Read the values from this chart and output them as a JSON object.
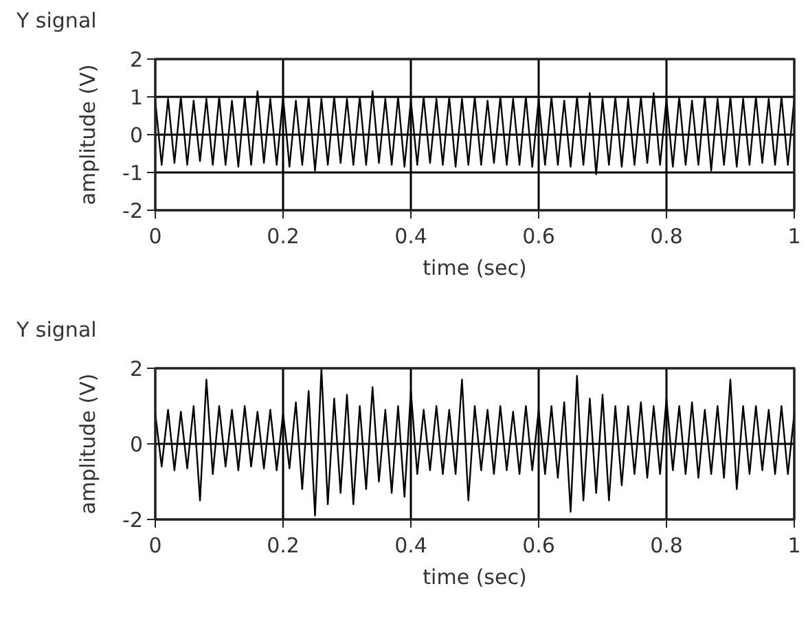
{
  "chart_data": [
    {
      "type": "line",
      "title": "Y signal",
      "xlabel": "time (sec)",
      "ylabel": "amplitude (V)",
      "xlim": [
        0,
        1
      ],
      "ylim": [
        -2,
        2
      ],
      "xticks": [
        0,
        0.2,
        0.4,
        0.6,
        0.8,
        1
      ],
      "yticks": [
        -2,
        -1,
        0,
        1,
        2
      ],
      "grid": true,
      "x": [
        0,
        0.01,
        0.02,
        0.03,
        0.04,
        0.05,
        0.06,
        0.07,
        0.08,
        0.09,
        0.1,
        0.11,
        0.12,
        0.13,
        0.14,
        0.15,
        0.16,
        0.17,
        0.18,
        0.19,
        0.2,
        0.21,
        0.22,
        0.23,
        0.24,
        0.25,
        0.26,
        0.27,
        0.28,
        0.29,
        0.3,
        0.31,
        0.32,
        0.33,
        0.34,
        0.35,
        0.36,
        0.37,
        0.38,
        0.39,
        0.4,
        0.41,
        0.42,
        0.43,
        0.44,
        0.45,
        0.46,
        0.47,
        0.48,
        0.49,
        0.5,
        0.51,
        0.52,
        0.53,
        0.54,
        0.55,
        0.56,
        0.57,
        0.58,
        0.59,
        0.6,
        0.61,
        0.62,
        0.63,
        0.64,
        0.65,
        0.66,
        0.67,
        0.68,
        0.69,
        0.7,
        0.71,
        0.72,
        0.73,
        0.74,
        0.75,
        0.76,
        0.77,
        0.78,
        0.79,
        0.8,
        0.81,
        0.82,
        0.83,
        0.84,
        0.85,
        0.86,
        0.87,
        0.88,
        0.89,
        0.9,
        0.91,
        0.92,
        0.93,
        0.94,
        0.95,
        0.96,
        0.97,
        0.98,
        0.99,
        1
      ],
      "series": [
        {
          "color": "#000000",
          "values": [
            0.9,
            -0.8,
            0.95,
            -0.75,
            1.0,
            -0.8,
            0.9,
            -0.7,
            0.95,
            -0.8,
            1.0,
            -0.8,
            0.9,
            -0.85,
            1.0,
            -0.8,
            1.15,
            -0.75,
            0.95,
            -0.8,
            1.0,
            -0.85,
            0.9,
            -0.8,
            1.0,
            -0.95,
            0.95,
            -0.8,
            1.0,
            -0.75,
            0.95,
            -0.8,
            1.0,
            -0.8,
            1.15,
            -0.75,
            0.95,
            -0.8,
            1.0,
            -0.85,
            0.9,
            -0.8,
            1.0,
            -0.75,
            0.95,
            -0.8,
            1.0,
            -0.85,
            0.95,
            -0.8,
            1.0,
            -0.8,
            0.9,
            -0.75,
            1.0,
            -0.8,
            0.95,
            -0.8,
            1.0,
            -0.85,
            0.95,
            -0.8,
            1.0,
            -0.8,
            0.9,
            -0.85,
            1.0,
            -0.8,
            1.1,
            -1.05,
            0.95,
            -0.8,
            1.0,
            -0.85,
            0.95,
            -0.8,
            1.0,
            -0.75,
            1.1,
            -0.8,
            0.95,
            -0.85,
            1.0,
            -0.8,
            0.9,
            -0.8,
            1.0,
            -0.95,
            0.95,
            -0.8,
            1.0,
            -0.85,
            0.95,
            -0.8,
            1.0,
            -0.75,
            0.95,
            -0.8,
            1.0,
            -0.8,
            0.95
          ]
        }
      ]
    },
    {
      "type": "line",
      "title": "Y signal",
      "xlabel": "time (sec)",
      "ylabel": "amplitude (V)",
      "xlim": [
        0,
        1
      ],
      "ylim": [
        -2,
        2
      ],
      "xticks": [
        0,
        0.2,
        0.4,
        0.6,
        0.8,
        1
      ],
      "yticks": [
        -2,
        0,
        2
      ],
      "grid": true,
      "x": [
        0,
        0.01,
        0.02,
        0.03,
        0.04,
        0.05,
        0.06,
        0.07,
        0.08,
        0.09,
        0.1,
        0.11,
        0.12,
        0.13,
        0.14,
        0.15,
        0.16,
        0.17,
        0.18,
        0.19,
        0.2,
        0.21,
        0.22,
        0.23,
        0.24,
        0.25,
        0.26,
        0.27,
        0.28,
        0.29,
        0.3,
        0.31,
        0.32,
        0.33,
        0.34,
        0.35,
        0.36,
        0.37,
        0.38,
        0.39,
        0.4,
        0.41,
        0.42,
        0.43,
        0.44,
        0.45,
        0.46,
        0.47,
        0.48,
        0.49,
        0.5,
        0.51,
        0.52,
        0.53,
        0.54,
        0.55,
        0.56,
        0.57,
        0.58,
        0.59,
        0.6,
        0.61,
        0.62,
        0.63,
        0.64,
        0.65,
        0.66,
        0.67,
        0.68,
        0.69,
        0.7,
        0.71,
        0.72,
        0.73,
        0.74,
        0.75,
        0.76,
        0.77,
        0.78,
        0.79,
        0.8,
        0.81,
        0.82,
        0.83,
        0.84,
        0.85,
        0.86,
        0.87,
        0.88,
        0.89,
        0.9,
        0.91,
        0.92,
        0.93,
        0.94,
        0.95,
        0.96,
        0.97,
        0.98,
        0.99,
        1
      ],
      "series": [
        {
          "color": "#000000",
          "values": [
            0.8,
            -0.6,
            0.9,
            -0.7,
            0.85,
            -0.65,
            1.0,
            -1.5,
            1.7,
            -0.8,
            1.0,
            -0.6,
            0.9,
            -0.7,
            1.0,
            -0.6,
            0.85,
            -0.65,
            0.9,
            -0.7,
            0.8,
            -0.65,
            1.1,
            -1.2,
            1.4,
            -1.9,
            2.0,
            -1.6,
            1.2,
            -1.3,
            1.3,
            -1.6,
            1.0,
            -1.2,
            1.5,
            -1.0,
            0.9,
            -1.3,
            1.0,
            -1.4,
            1.4,
            -0.8,
            0.9,
            -0.7,
            1.0,
            -0.8,
            0.9,
            -0.8,
            1.7,
            -1.5,
            1.0,
            -0.7,
            0.9,
            -0.8,
            1.0,
            -0.7,
            0.85,
            -0.8,
            1.0,
            -0.7,
            0.9,
            -0.8,
            1.0,
            -0.9,
            1.1,
            -1.8,
            1.8,
            -1.5,
            1.2,
            -1.3,
            1.3,
            -1.5,
            1.0,
            -1.1,
            1.0,
            -0.8,
            1.1,
            -0.9,
            1.0,
            -0.8,
            1.2,
            -0.7,
            1.0,
            -0.8,
            1.1,
            -0.9,
            0.9,
            -0.8,
            1.0,
            -0.9,
            1.7,
            -1.2,
            1.0,
            -0.8,
            1.0,
            -0.7,
            0.9,
            -0.8,
            1.0,
            -0.8,
            0.8
          ]
        }
      ]
    }
  ]
}
